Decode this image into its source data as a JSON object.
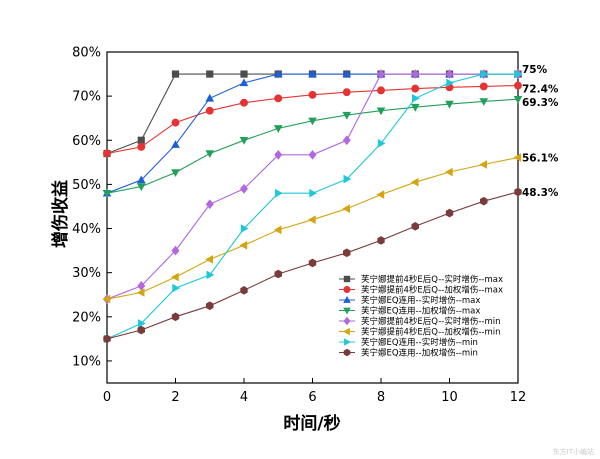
{
  "chart_data": {
    "type": "line",
    "title": "",
    "xlabel": "时间/秒",
    "ylabel": "增伤收益",
    "xlim": [
      0,
      12
    ],
    "ylim": [
      0.05,
      0.8
    ],
    "x_ticks": [
      0,
      2,
      4,
      6,
      8,
      10,
      12
    ],
    "y_ticks": [
      0.1,
      0.2,
      0.3,
      0.4,
      0.5,
      0.6,
      0.7,
      0.8
    ],
    "y_tick_labels": [
      "10%",
      "20%",
      "30%",
      "40%",
      "50%",
      "60%",
      "70%",
      "80%"
    ],
    "x": [
      0,
      1,
      2,
      3,
      4,
      5,
      6,
      7,
      8,
      9,
      10,
      11,
      12
    ],
    "legend_position": "bottom-right",
    "series": [
      {
        "name": "芙宁娜提前4秒E后Q--实时增伤--max",
        "color": "#4d4d4d",
        "marker": "square",
        "values": [
          0.57,
          0.6,
          0.75,
          0.75,
          0.75,
          0.75,
          0.75,
          0.75,
          0.75,
          0.75,
          0.75,
          0.75,
          0.75
        ]
      },
      {
        "name": "芙宁娜提前4秒E后Q--加权增伤--max",
        "color": "#e53333",
        "marker": "circle",
        "values": [
          0.57,
          0.585,
          0.64,
          0.667,
          0.685,
          0.695,
          0.703,
          0.709,
          0.713,
          0.717,
          0.72,
          0.722,
          0.724
        ]
      },
      {
        "name": "芙宁娜EQ连用--实时增伤--max",
        "color": "#1f5fd6",
        "marker": "triangle-up",
        "values": [
          0.48,
          0.51,
          0.59,
          0.695,
          0.73,
          0.75,
          0.75,
          0.75,
          0.75,
          0.75,
          0.75,
          0.75,
          0.75
        ]
      },
      {
        "name": "芙宁娜EQ连用--加权增伤--max",
        "color": "#22a05a",
        "marker": "triangle-down",
        "values": [
          0.48,
          0.495,
          0.527,
          0.57,
          0.6,
          0.627,
          0.644,
          0.657,
          0.667,
          0.675,
          0.682,
          0.688,
          0.693
        ]
      },
      {
        "name": "芙宁娜提前4秒E后Q--实时增伤--min",
        "color": "#b266e0",
        "marker": "diamond",
        "values": [
          0.24,
          0.27,
          0.35,
          0.455,
          0.49,
          0.567,
          0.567,
          0.6,
          0.75,
          0.75,
          0.75,
          0.75,
          0.75
        ]
      },
      {
        "name": "芙宁娜提前4秒E后Q--加权增伤--min",
        "color": "#d4a510",
        "marker": "triangle-left",
        "values": [
          0.24,
          0.255,
          0.29,
          0.33,
          0.362,
          0.397,
          0.42,
          0.445,
          0.477,
          0.505,
          0.528,
          0.545,
          0.561
        ]
      },
      {
        "name": "芙宁娜EQ连用--实时增伤--min",
        "color": "#1fc8d6",
        "marker": "triangle-right",
        "values": [
          0.15,
          0.185,
          0.265,
          0.295,
          0.4,
          0.48,
          0.48,
          0.512,
          0.593,
          0.695,
          0.73,
          0.75,
          0.75
        ]
      },
      {
        "name": "芙宁娜EQ连用--加权增伤--min",
        "color": "#7a3b3b",
        "marker": "hexagon",
        "values": [
          0.15,
          0.17,
          0.2,
          0.225,
          0.26,
          0.297,
          0.322,
          0.345,
          0.373,
          0.405,
          0.435,
          0.462,
          0.483
        ]
      }
    ],
    "annotations": [
      {
        "x": 12,
        "y": 0.75,
        "text": "75%"
      },
      {
        "x": 12,
        "y": 0.724,
        "text": "72.4%"
      },
      {
        "x": 12,
        "y": 0.693,
        "text": "69.3%"
      },
      {
        "x": 12,
        "y": 0.561,
        "text": "56.1%"
      },
      {
        "x": 12,
        "y": 0.483,
        "text": "48.3%"
      }
    ]
  },
  "watermark": "东方IT小编站"
}
